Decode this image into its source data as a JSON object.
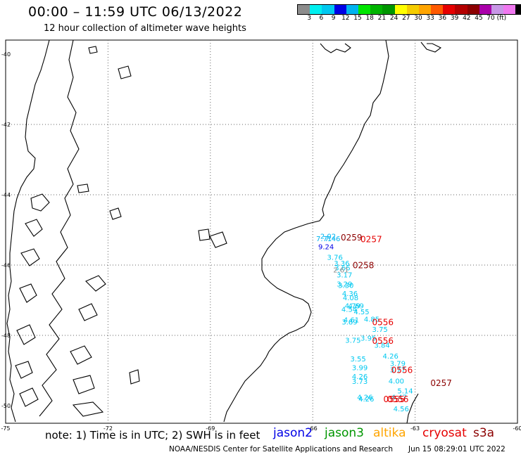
{
  "header": {
    "title": "00:00 – 11:59 UTC 06/13/2022",
    "subtitle": "12 hour collection of altimeter wave heights"
  },
  "colorbar": {
    "colors": [
      "#8c8c8c",
      "#00f0f0",
      "#00c8f0",
      "#0000e6",
      "#00b4f0",
      "#00e600",
      "#00b400",
      "#009600",
      "#ffff00",
      "#f5cd00",
      "#ffa500",
      "#ff5a00",
      "#e60000",
      "#b40000",
      "#8c0000",
      "#aa00aa",
      "#c896e6",
      "#f078f0",
      "#000000"
    ],
    "labels": [
      "3",
      "6",
      "9",
      "12",
      "15",
      "18",
      "21",
      "24",
      "27",
      "30",
      "33",
      "36",
      "39",
      "42",
      "45",
      "70 (ft)"
    ]
  },
  "map": {
    "lat_labels": [
      "-40",
      "-42",
      "-44",
      "-46",
      "-48",
      "-50"
    ],
    "lon_labels": [
      "-75",
      "-72",
      "-69",
      "-66",
      "-63",
      "-60"
    ],
    "lon_range": [
      -75,
      -60
    ],
    "lat_range": [
      -50.5,
      -39.6
    ],
    "grid": "dotted",
    "observations": [
      {
        "lon": -65.78,
        "lat": -45.17,
        "text": "2.02",
        "color": "#00b4f0"
      },
      {
        "lon": -65.9,
        "lat": -45.24,
        "text": "7.71",
        "color": "#00b4f0"
      },
      {
        "lon": -65.65,
        "lat": -45.24,
        "text": "7.46",
        "color": "#00b4f0"
      },
      {
        "lon": -65.84,
        "lat": -45.47,
        "text": "9.24",
        "color": "#0000e6"
      },
      {
        "lon": -65.58,
        "lat": -45.77,
        "text": "3.76",
        "color": "#00c8f0"
      },
      {
        "lon": -65.38,
        "lat": -45.94,
        "text": "3.36",
        "color": "#00c8f0"
      },
      {
        "lon": -65.36,
        "lat": -46.07,
        "text": "3.66",
        "color": "#00c8f0"
      },
      {
        "lon": -65.4,
        "lat": -46.13,
        "text": "2.61",
        "color": "#8c8c8c"
      },
      {
        "lon": -65.3,
        "lat": -46.27,
        "text": "3.17",
        "color": "#00c8f0"
      },
      {
        "lon": -65.3,
        "lat": -46.53,
        "text": "3.29",
        "color": "#00c8f0"
      },
      {
        "lon": -65.26,
        "lat": -46.57,
        "text": "3.30",
        "color": "#00c8f0"
      },
      {
        "lon": -65.14,
        "lat": -46.8,
        "text": "4.36",
        "color": "#00c8f0"
      },
      {
        "lon": -65.12,
        "lat": -46.92,
        "text": "4.08",
        "color": "#00c8f0"
      },
      {
        "lon": -65.06,
        "lat": -47.15,
        "text": "4.79",
        "color": "#00c8f0"
      },
      {
        "lon": -64.96,
        "lat": -47.15,
        "text": "4.69",
        "color": "#00c8f0"
      },
      {
        "lon": -65.16,
        "lat": -47.25,
        "text": "4.54",
        "color": "#00c8f0"
      },
      {
        "lon": -64.8,
        "lat": -47.32,
        "text": "4.55",
        "color": "#00c8f0"
      },
      {
        "lon": -65.1,
        "lat": -47.55,
        "text": "4.61",
        "color": "#00c8f0"
      },
      {
        "lon": -64.5,
        "lat": -47.53,
        "text": "4.85",
        "color": "#00c8f0"
      },
      {
        "lon": -65.15,
        "lat": -47.61,
        "text": "3.89",
        "color": "#00c8f0"
      },
      {
        "lon": -64.26,
        "lat": -47.82,
        "text": "3.75",
        "color": "#00c8f0"
      },
      {
        "lon": -64.6,
        "lat": -48.07,
        "text": "3.95",
        "color": "#00c8f0"
      },
      {
        "lon": -65.05,
        "lat": -48.13,
        "text": "3.75",
        "color": "#00c8f0"
      },
      {
        "lon": -64.2,
        "lat": -48.27,
        "text": "3.84",
        "color": "#00c8f0"
      },
      {
        "lon": -63.95,
        "lat": -48.58,
        "text": "4.26",
        "color": "#00c8f0"
      },
      {
        "lon": -64.9,
        "lat": -48.66,
        "text": "3.55",
        "color": "#00c8f0"
      },
      {
        "lon": -63.74,
        "lat": -48.79,
        "text": "3.79",
        "color": "#00c8f0"
      },
      {
        "lon": -64.85,
        "lat": -48.91,
        "text": "3.99",
        "color": "#00c8f0"
      },
      {
        "lon": -63.74,
        "lat": -48.97,
        "text": "3.77",
        "color": "#00c8f0"
      },
      {
        "lon": -64.85,
        "lat": -49.16,
        "text": "4.26",
        "color": "#00c8f0"
      },
      {
        "lon": -64.85,
        "lat": -49.3,
        "text": "3.73",
        "color": "#00c8f0"
      },
      {
        "lon": -63.78,
        "lat": -49.29,
        "text": "4.00",
        "color": "#00c8f0"
      },
      {
        "lon": -63.52,
        "lat": -49.57,
        "text": "5.14",
        "color": "#00c8f0"
      },
      {
        "lon": -64.7,
        "lat": -49.75,
        "text": "4.26",
        "color": "#00c8f0"
      },
      {
        "lon": -64.66,
        "lat": -49.8,
        "text": "4.26",
        "color": "#00c8f0"
      },
      {
        "lon": -63.7,
        "lat": -49.75,
        "text": "4.47",
        "color": "#00c8f0"
      },
      {
        "lon": -63.64,
        "lat": -50.08,
        "text": "4.56",
        "color": "#00c8f0"
      }
    ],
    "times": [
      {
        "lon": -65.18,
        "lat": -45.2,
        "text": "0259",
        "color": "#8c0000"
      },
      {
        "lon": -64.6,
        "lat": -45.25,
        "text": "0257",
        "color": "#e60000"
      },
      {
        "lon": -64.83,
        "lat": -45.99,
        "text": "0258",
        "color": "#8c0000"
      },
      {
        "lon": -64.26,
        "lat": -47.61,
        "text": "0556",
        "color": "#e60000"
      },
      {
        "lon": -64.26,
        "lat": -48.14,
        "text": "0556",
        "color": "#e60000"
      },
      {
        "lon": -63.7,
        "lat": -48.97,
        "text": "0556",
        "color": "#e60000"
      },
      {
        "lon": -62.55,
        "lat": -49.34,
        "text": "0257",
        "color": "#8c0000"
      },
      {
        "lon": -63.93,
        "lat": -49.8,
        "text": "0555",
        "color": "#e60000"
      },
      {
        "lon": -63.82,
        "lat": -49.8,
        "text": "0556",
        "color": "#e60000"
      }
    ]
  },
  "footer": {
    "note": "note:  1) Time is in UTC;  2) SWH is in feet",
    "legend": [
      {
        "text": "jason2",
        "color": "#0000e6"
      },
      {
        "text": "jason3",
        "color": "#009600"
      },
      {
        "text": "altika",
        "color": "#ffa500"
      },
      {
        "text": "cryosat",
        "color": "#e60000"
      },
      {
        "text": "s3a",
        "color": "#8c0000"
      }
    ],
    "credit": "NOAA/NESDIS Center for Satellite Applications and Research",
    "timestamp": "Jun 15 08:29:01 UTC 2022"
  }
}
